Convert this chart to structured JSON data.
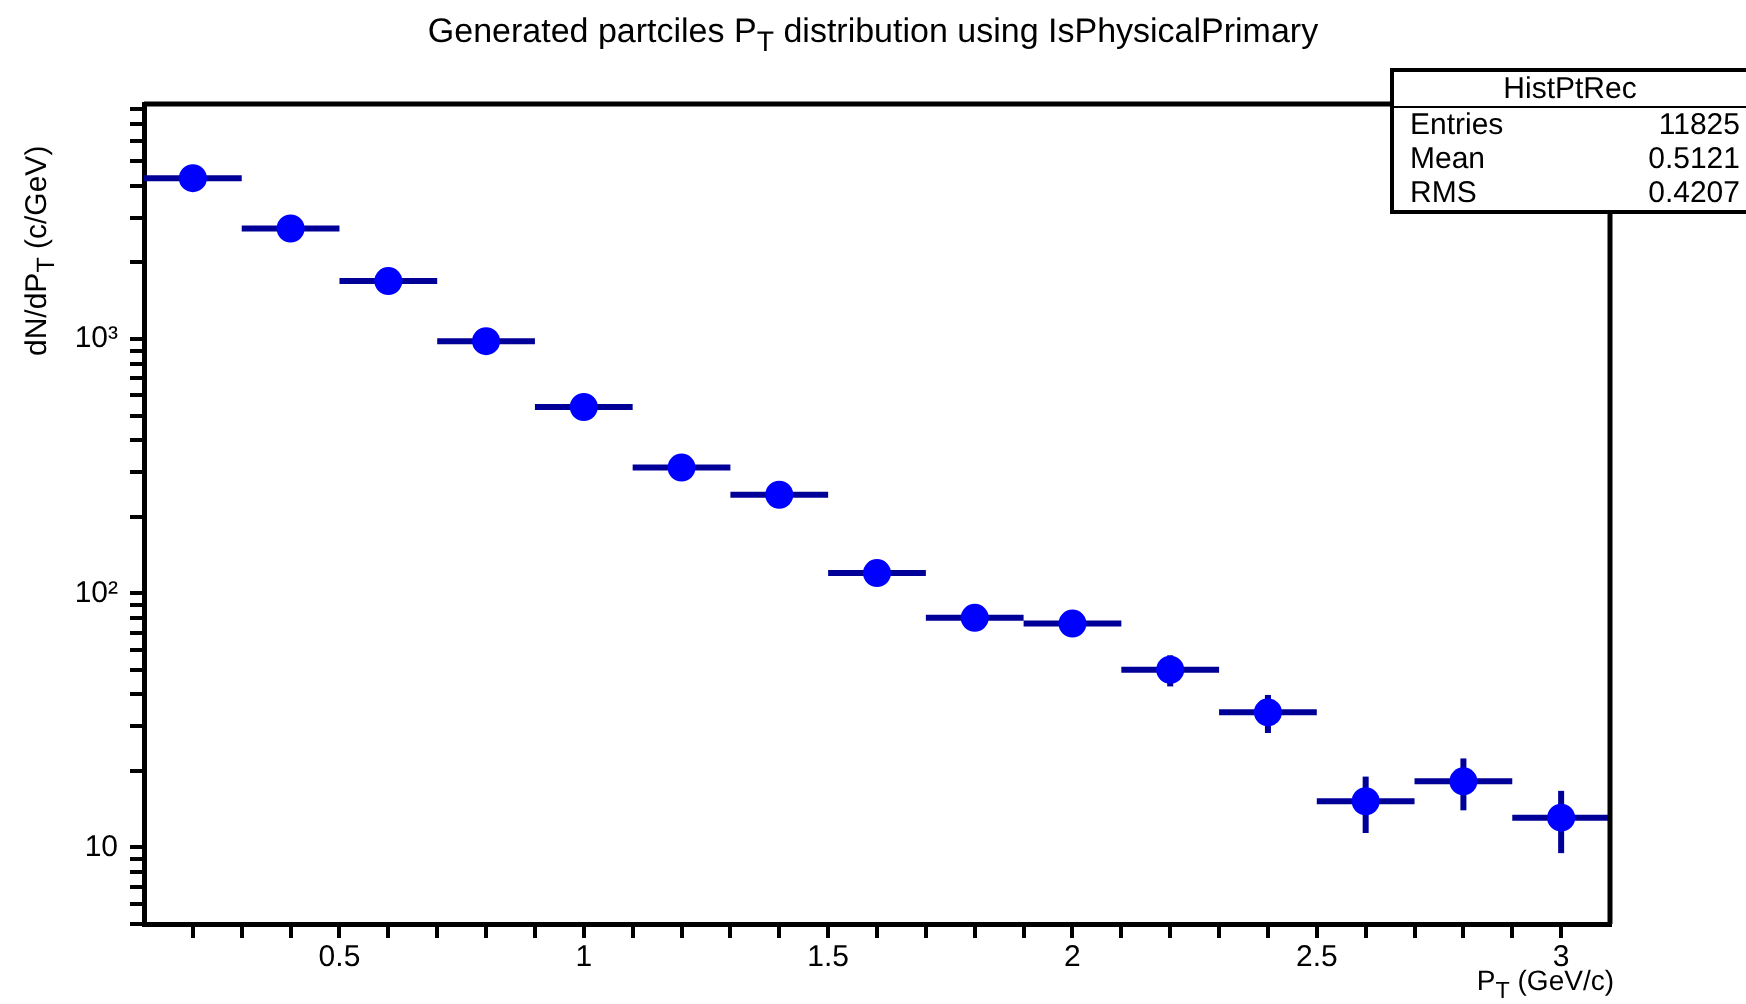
{
  "chart_data": {
    "type": "scatter",
    "title": "Generated partciles P$_{T}$ distribution using IsPhysicalPrimary",
    "xlabel": "P$_{T}$ (GeV/c)",
    "ylabel": "dN/dP$_{T}$ (c/GeV)",
    "annotations": [
      "HistPtRec",
      "Entries",
      "11825",
      "Mean",
      "0.5121",
      "RMS",
      "0.4207"
    ],
    "x": [
      0.2,
      0.4,
      0.6,
      0.8,
      1.0,
      1.2,
      1.4,
      1.6,
      1.8,
      2.0,
      2.2,
      2.4,
      2.6,
      2.8,
      3.0
    ],
    "values": [
      4290,
      2720,
      1690,
      980,
      540,
      312,
      244,
      120,
      80,
      76,
      50,
      34,
      15.2,
      18.2,
      13.1
    ],
    "errors": [
      null,
      null,
      null,
      null,
      null,
      null,
      null,
      null,
      null,
      null,
      7,
      5.8,
      3.8,
      4.2,
      3.6
    ],
    "xerrors": [
      0.1,
      0.1,
      0.1,
      0.1,
      0.1,
      0.1,
      0.1,
      0.1,
      0.1,
      0.1,
      0.1,
      0.1,
      0.1,
      0.1,
      0.1
    ],
    "color": "#0000ff",
    "marker": "circle",
    "log": "y",
    "grid": false,
    "xlim": [
      0.1,
      3.1
    ],
    "xticks": [
      {
        "value": 0.2,
        "label": null
      },
      {
        "value": 0.3,
        "label": null
      },
      {
        "value": 0.4,
        "label": null
      },
      0.5,
      {
        "value": 0.6,
        "label": null
      },
      {
        "value": 0.7,
        "label": null
      },
      {
        "value": 0.8,
        "label": null
      },
      {
        "value": 0.9,
        "label": null
      },
      1,
      {
        "value": 1.1,
        "label": null
      },
      {
        "value": 1.2,
        "label": null
      },
      {
        "value": 1.3,
        "label": null
      },
      {
        "value": 1.4,
        "label": null
      },
      1.5,
      {
        "value": 1.6,
        "label": null
      },
      {
        "value": 1.7,
        "label": null
      },
      {
        "value": 1.8,
        "label": null
      },
      {
        "value": 1.9,
        "label": null
      },
      2,
      {
        "value": 2.1,
        "label": null
      },
      {
        "value": 2.2,
        "label": null
      },
      {
        "value": 2.3,
        "label": null
      },
      {
        "value": 2.4,
        "label": null
      },
      2.5,
      {
        "value": 2.6,
        "label": null
      },
      {
        "value": 2.7,
        "label": null
      },
      {
        "value": 2.8,
        "label": null
      },
      {
        "value": 2.9,
        "label": null
      },
      3
    ],
    "ylim": [
      5,
      8400
    ],
    "yticks": [
      {
        "value": 5,
        "label": null
      },
      {
        "value": 6,
        "label": null
      },
      {
        "value": 7,
        "label": null
      },
      {
        "value": 8,
        "label": null
      },
      {
        "value": 9,
        "label": null
      },
      10,
      {
        "value": 20,
        "label": null
      },
      {
        "value": 30,
        "label": null
      },
      {
        "value": 40,
        "label": null
      },
      {
        "value": 50,
        "label": null
      },
      {
        "value": 60,
        "label": null
      },
      {
        "value": 70,
        "label": null
      },
      {
        "value": 80,
        "label": null
      },
      {
        "value": 90,
        "label": null
      },
      {
        "value": 100,
        "label": "10²"
      },
      {
        "value": 200,
        "label": null
      },
      {
        "value": 300,
        "label": null
      },
      {
        "value": 400,
        "label": null
      },
      {
        "value": 500,
        "label": null
      },
      {
        "value": 600,
        "label": null
      },
      {
        "value": 700,
        "label": null
      },
      {
        "value": 800,
        "label": null
      },
      {
        "value": 900,
        "label": null
      },
      {
        "value": 1000,
        "label": "10³"
      },
      {
        "value": 2000,
        "label": null
      },
      {
        "value": 3000,
        "label": null
      },
      {
        "value": 4000,
        "label": null
      },
      {
        "value": 5000,
        "label": null
      },
      {
        "value": 6000,
        "label": null
      },
      {
        "value": 7000,
        "label": null
      },
      {
        "value": 8000,
        "label": null
      }
    ]
  }
}
